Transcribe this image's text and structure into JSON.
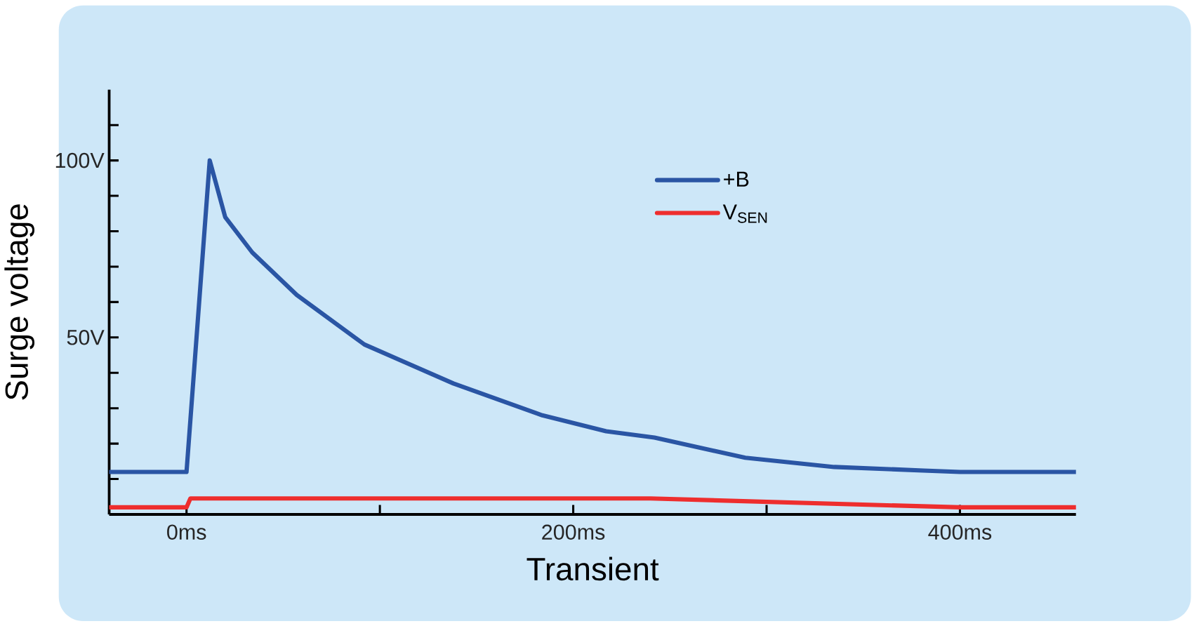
{
  "chart_data": {
    "type": "line",
    "xlabel": "Transient",
    "ylabel": "Surge voltage",
    "xlim": [
      -40,
      460
    ],
    "ylim": [
      0,
      120
    ],
    "xticks": [
      {
        "value": 0,
        "label": "0ms"
      },
      {
        "value": 100,
        "label": null
      },
      {
        "value": 200,
        "label": "200ms"
      },
      {
        "value": 300,
        "label": null
      },
      {
        "value": 400,
        "label": "400ms"
      }
    ],
    "yticks": [
      {
        "value": 10,
        "label": null
      },
      {
        "value": 20,
        "label": null
      },
      {
        "value": 30,
        "label": null
      },
      {
        "value": 40,
        "label": null
      },
      {
        "value": 50,
        "label": "50V"
      },
      {
        "value": 60,
        "label": null
      },
      {
        "value": 70,
        "label": null
      },
      {
        "value": 80,
        "label": null
      },
      {
        "value": 90,
        "label": null
      },
      {
        "value": 100,
        "label": "100V"
      },
      {
        "value": 110,
        "label": null
      }
    ],
    "series": [
      {
        "name": "+B",
        "color": "#2a55a4",
        "x": [
          -40,
          0,
          12,
          20,
          34,
          57,
          92,
          138,
          184,
          217,
          242,
          289,
          335,
          381,
          400,
          460
        ],
        "values": [
          12,
          12,
          100,
          84,
          74,
          62,
          48,
          37,
          28,
          23.5,
          21.7,
          16,
          13.4,
          12.4,
          12,
          12
        ]
      },
      {
        "name": "V$_{SEN}$",
        "color": "#ee2e2e",
        "x": [
          -40,
          0,
          2,
          240,
          400,
          460
        ],
        "values": [
          2,
          2,
          4.5,
          4.5,
          2,
          2
        ]
      }
    ],
    "grid": false,
    "legend": "top right",
    "marker": "none",
    "line_style": "solid"
  }
}
